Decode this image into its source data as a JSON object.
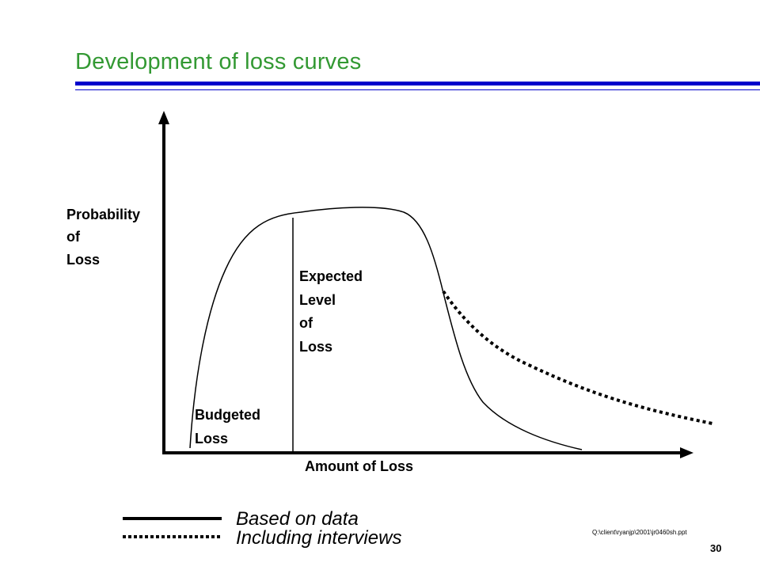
{
  "slide": {
    "title": "Development of loss curves",
    "file_path": "Q:\\client\\ryanjp\\2001\\jr0460sh.ppt",
    "page_number": "30"
  },
  "diagram": {
    "y_axis_label": [
      "Probability",
      "of",
      "Loss"
    ],
    "x_axis_label": "Amount of Loss",
    "expected_label": [
      "Expected",
      "Level",
      "of",
      "Loss"
    ],
    "budgeted_label": [
      "Budgeted",
      "Loss"
    ]
  },
  "legend": {
    "solid_label": "Based on data",
    "dotted_label": "Including interviews"
  },
  "colors": {
    "title": "#339933",
    "rule": "#0000cc",
    "ink": "#000000"
  }
}
